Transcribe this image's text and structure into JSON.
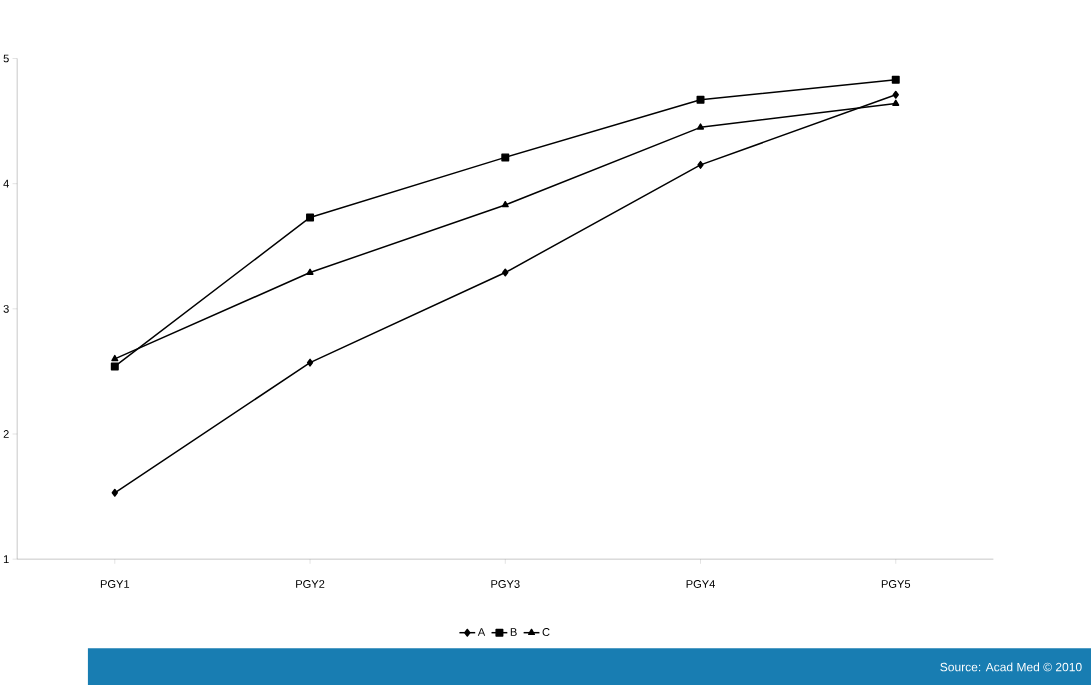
{
  "chart_data": {
    "type": "line",
    "categories": [
      "PGY1",
      "PGY2",
      "PGY3",
      "PGY4",
      "PGY5"
    ],
    "series": [
      {
        "name": "A",
        "color": "#000000",
        "marker": "diamond",
        "values": [
          1.53,
          2.57,
          3.29,
          4.15,
          4.71
        ]
      },
      {
        "name": "B",
        "color": "#000000",
        "marker": "square",
        "values": [
          2.54,
          3.73,
          4.21,
          4.67,
          4.83
        ]
      },
      {
        "name": "C",
        "color": "#000000",
        "marker": "triangle",
        "values": [
          2.6,
          3.29,
          3.83,
          4.45,
          4.64
        ]
      }
    ],
    "ylim": [
      1,
      5
    ],
    "yticks": [
      1,
      2,
      3,
      4,
      5
    ],
    "grid": false,
    "legend": "bottom",
    "line_style": "solid",
    "annotations": [
      "Source: Acad Med © 2010"
    ]
  }
}
